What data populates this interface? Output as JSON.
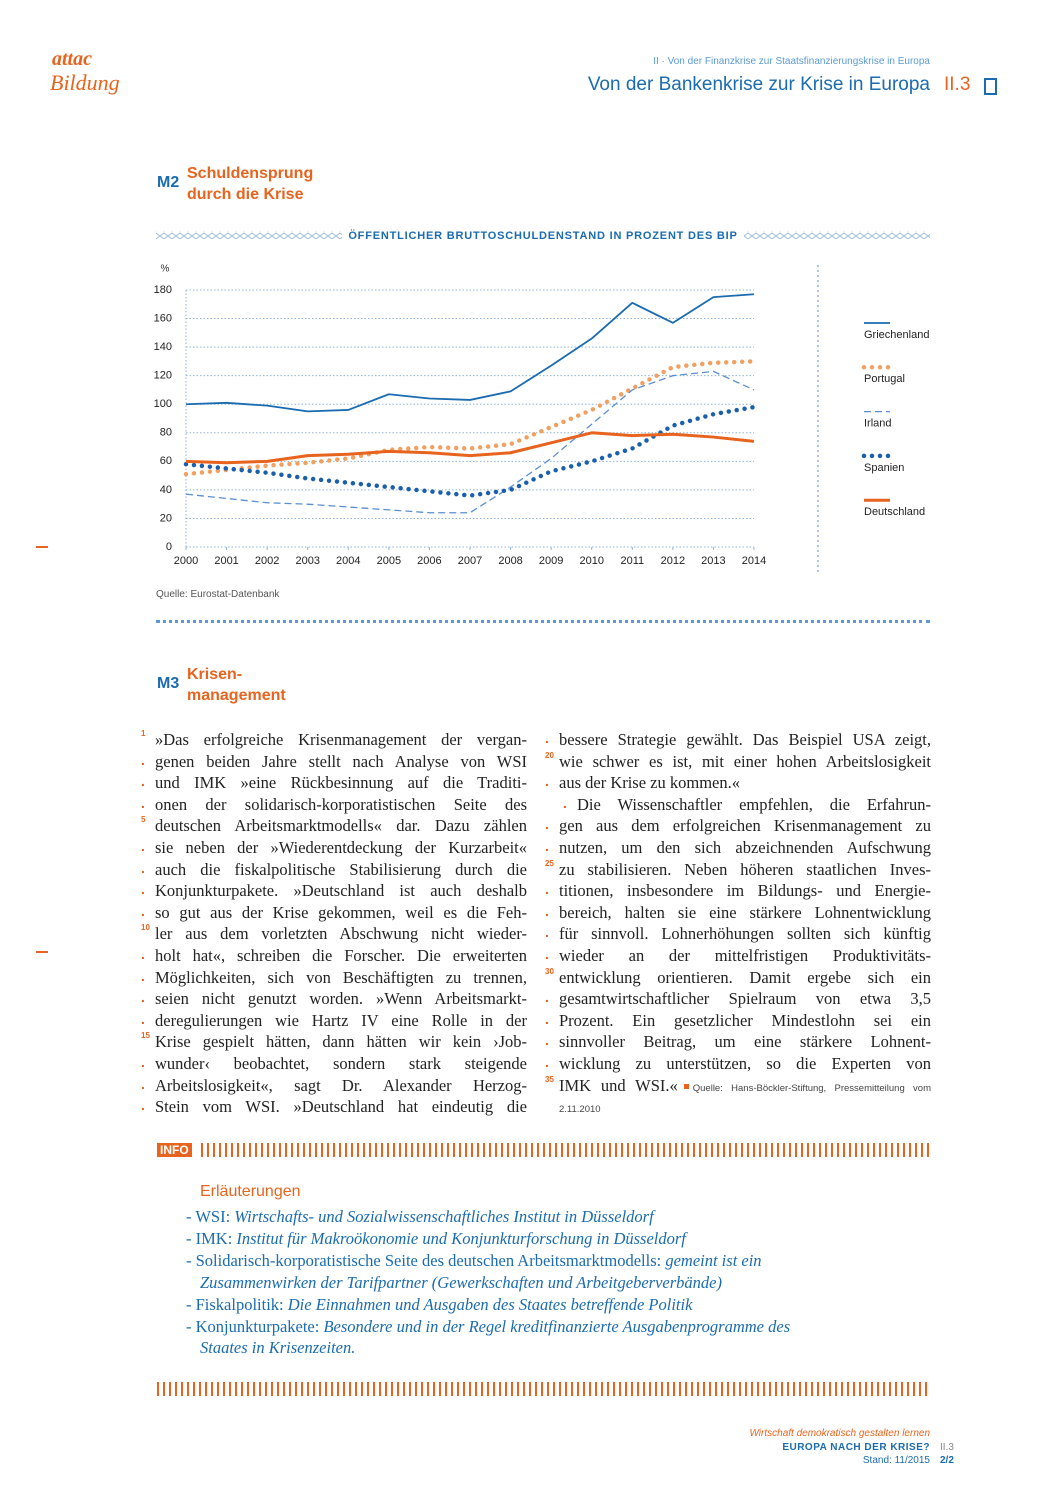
{
  "header": {
    "logo_top": "attac",
    "logo_bottom": "Bildung",
    "subtitle": "II · Von der Finanzkrise zur Staatsfinanzierungskrise in Europa",
    "title": "Von der Bankenkrise zur Krise in Europa",
    "section": "II.3"
  },
  "m2": {
    "label": "M2",
    "title_lines": [
      "Schuldensprung",
      "durch die Krise"
    ],
    "source": "Quelle: Eurostat-Datenbank"
  },
  "chart_data": {
    "type": "line",
    "title": "ÖFFENTLICHER BRUTTOSCHULDENSTAND IN PROZENT DES BIP",
    "y_label": "%",
    "x": [
      2000,
      2001,
      2002,
      2003,
      2004,
      2005,
      2006,
      2007,
      2008,
      2009,
      2010,
      2011,
      2012,
      2013,
      2014
    ],
    "xlim": [
      2000,
      2014
    ],
    "xticks": [
      2000,
      2001,
      2002,
      2003,
      2004,
      2005,
      2006,
      2007,
      2008,
      2009,
      2010,
      2011,
      2012,
      2013,
      2014
    ],
    "ylim": [
      0,
      180
    ],
    "yticks": [
      0,
      20,
      40,
      60,
      80,
      100,
      120,
      140,
      160,
      180
    ],
    "grid": true,
    "legend": "right",
    "series": [
      {
        "name": "Griechenland",
        "color": "#1a6bb0",
        "dash": "solid",
        "values": [
          100,
          101,
          99,
          95,
          96,
          107,
          104,
          103,
          109,
          127,
          146,
          171,
          157,
          175,
          177
        ]
      },
      {
        "name": "Portugal",
        "color": "#f0a060",
        "dash": "dotted",
        "values": [
          51,
          54,
          57,
          59,
          62,
          68,
          70,
          69,
          72,
          84,
          96,
          111,
          126,
          129,
          130
        ]
      },
      {
        "name": "Irland",
        "color": "#5b8fd0",
        "dash": "dashed",
        "values": [
          37,
          34,
          31,
          30,
          28,
          26,
          24,
          24,
          42,
          62,
          86,
          110,
          120,
          123,
          110
        ]
      },
      {
        "name": "Spanien",
        "color": "#1a5fae",
        "dash": "dotted",
        "values": [
          58,
          55,
          52,
          48,
          45,
          42,
          39,
          36,
          40,
          53,
          60,
          69,
          85,
          93,
          98
        ]
      },
      {
        "name": "Deutschland",
        "color": "#e8641e",
        "dash": "solid",
        "values": [
          60,
          59,
          60,
          64,
          65,
          67,
          66,
          64,
          66,
          73,
          80,
          78,
          79,
          77,
          74
        ]
      }
    ]
  },
  "m3": {
    "label": "M3",
    "title_lines": [
      "Krisen-",
      "management"
    ],
    "line_numbers": [
      1,
      5,
      10,
      15,
      20,
      25,
      30,
      35
    ],
    "columns": [
      {
        "lines": [
          "»Das erfolgreiche Krisenmanagement der vergan-",
          "genen beiden Jahre stellt nach Analyse von WSI",
          "und IMK »eine Rückbesinnung auf die Traditi-",
          "onen der solidarisch-korporatistischen Seite des",
          "deutschen Arbeitsmarktmodells« dar. Dazu zählen",
          "sie neben der »Wiederentdeckung der Kurzarbeit«",
          "auch die fiskalpolitische Stabilisierung durch die",
          "Konjunkturpakete. »Deutschland ist auch deshalb",
          "so gut aus der Krise gekommen, weil es die Feh-",
          "ler aus dem vorletzten Abschwung nicht wieder-",
          "holt hat«, schreiben die Forscher. Die erweiterten",
          "Möglichkeiten, sich von Beschäftigten zu trennen,",
          "seien nicht genutzt worden. »Wenn Arbeitsmarkt-",
          "deregulierungen wie Hartz IV eine Rolle in der",
          "Krise gespielt hätten, dann hätten wir kein ›Job-",
          "wunder‹ beobachtet, sondern stark steigende",
          "Arbeitslosigkeit«, sagt Dr. Alexander Herzog-",
          "Stein vom WSI. »Deutschland hat eindeutig die"
        ]
      },
      {
        "lines": [
          "bessere Strategie gewählt. Das Beispiel USA zeigt,",
          "wie schwer es ist, mit einer hohen Arbeitslosigkeit",
          "aus der Krise zu kommen.«",
          "Die Wissenschaftler empfehlen, die Erfahrun-",
          "gen aus dem erfolgreichen Krisenmanagement zu",
          "nutzen, um den sich abzeichnenden Aufschwung",
          "zu stabilisieren. Neben höheren staatlichen Inves-",
          "titionen, insbesondere im Bildungs- und Energie-",
          "bereich, halten sie eine stärkere Lohnentwicklung",
          "für sinnvoll. Lohnerhöhungen sollten sich künftig",
          "wieder an der mittelfristigen Produktivitäts-",
          "entwicklung orientieren. Damit ergebe sich ein",
          "gesamtwirtschaftlicher Spielraum von etwa 3,5",
          "Prozent. Ein gesetzlicher Mindestlohn sei ein",
          "sinnvoller Beitrag, um eine stärkere Lohnent-",
          "wicklung zu unterstützen, so die Experten von",
          "IMK und WSI.«"
        ]
      }
    ],
    "source": "Quelle: Hans-Böckler-Stiftung, Pressemitteilung vom 2.11.2010"
  },
  "info": {
    "label": "INFO",
    "heading": "Erläuterungen",
    "items": [
      {
        "term": "WSI:",
        "definition": "Wirtschafts- und Sozialwissenschaftliches Institut in Düsseldorf"
      },
      {
        "term": "IMK:",
        "definition": "Institut für Makroökonomie und Konjunkturforschung in Düsseldorf"
      },
      {
        "term": "Solidarisch-korporatistische Seite des deutschen Arbeitsmarktmodells:",
        "definition": "gemeint ist ein Zusammenwirken der Tarifpartner (Gewerkschaften und Arbeitgeberverbände)"
      },
      {
        "term": "Fiskalpolitik:",
        "definition": "Die Einnahmen und Ausgaben des Staates betreffende Politik"
      },
      {
        "term": "Konjunkturpakete:",
        "definition": "Besondere und in der Regel kreditfinanzierte Ausgabenprogramme des Staates in Krisenzeiten."
      }
    ]
  },
  "footer": {
    "series": "Wirtschaft demokratisch gestalten lernen",
    "title": "EUROPA NACH DER KRISE?",
    "date": "Stand: 11/2015",
    "section": "II.3",
    "page": "2/2"
  }
}
